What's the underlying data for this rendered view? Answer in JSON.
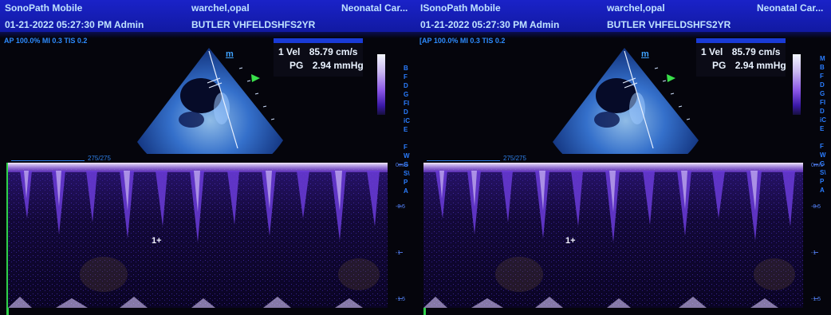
{
  "header": {
    "app": "SonoPath Mobile",
    "datetime": "01-21-2022 05:27:30 PM  Admin",
    "patient_name": "warchel,opal",
    "patient_id": "BUTLER VHFELDSHFS2YR",
    "exam": "Neonatal Car..."
  },
  "right_header": {
    "app": "ISonoPath Mobile",
    "datetime": "01-21-2022 05:27:30 PM  Admin",
    "patient_name": "warchel,opal",
    "patient_id": "BUTLER VHFELDSHFS2YR",
    "exam": "Neonatal Car..."
  },
  "imaging": {
    "ap_left": "AP 100.0%  MI 0.3  TIS 0.2",
    "ap_right": "[AP 100.0%  MI 0.3  TIS 0.2",
    "orientation_marker": "m",
    "scale_label": "275/275"
  },
  "measurement": {
    "index": "1",
    "vel_label": "Vel",
    "vel_value": "85.79 cm/s",
    "pg_label": "PG",
    "pg_value": "2.94 mmHg"
  },
  "side_letters_left": [
    "B",
    "F",
    "D",
    "G",
    "FI",
    "D",
    "iC",
    "E",
    "",
    "F",
    "W",
    "G",
    "S\\",
    "P",
    "A"
  ],
  "side_letters_right": [
    "M",
    "B",
    "F",
    "D",
    "G",
    "FI",
    "D",
    "iC",
    "E",
    "",
    "F",
    "W",
    "G",
    "S\\",
    "P",
    "A"
  ],
  "doppler_axis": {
    "top_label": "0m/s",
    "mid_label": "-0.5",
    "low_label": "-1",
    "bottom_label": "-1.5"
  },
  "cursor_label": "1",
  "colors": {
    "header_bg": "#1a22c8",
    "text_header": "#bfe2ff",
    "accent_blue": "#2d8bff",
    "doppler_purple": "#6a3bd8",
    "baseline_green": "#2fd24a"
  }
}
